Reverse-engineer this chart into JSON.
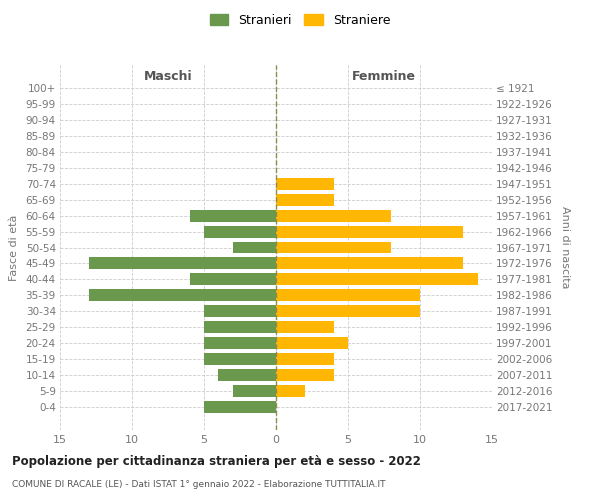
{
  "age_groups": [
    "100+",
    "95-99",
    "90-94",
    "85-89",
    "80-84",
    "75-79",
    "70-74",
    "65-69",
    "60-64",
    "55-59",
    "50-54",
    "45-49",
    "40-44",
    "35-39",
    "30-34",
    "25-29",
    "20-24",
    "15-19",
    "10-14",
    "5-9",
    "0-4"
  ],
  "birth_years": [
    "≤ 1921",
    "1922-1926",
    "1927-1931",
    "1932-1936",
    "1937-1941",
    "1942-1946",
    "1947-1951",
    "1952-1956",
    "1957-1961",
    "1962-1966",
    "1967-1971",
    "1972-1976",
    "1977-1981",
    "1982-1986",
    "1987-1991",
    "1992-1996",
    "1997-2001",
    "2002-2006",
    "2007-2011",
    "2012-2016",
    "2017-2021"
  ],
  "males": [
    0,
    0,
    0,
    0,
    0,
    0,
    0,
    0,
    6,
    5,
    3,
    13,
    6,
    13,
    5,
    5,
    5,
    5,
    4,
    3,
    5
  ],
  "females": [
    0,
    0,
    0,
    0,
    0,
    0,
    4,
    4,
    8,
    13,
    8,
    13,
    14,
    10,
    10,
    4,
    5,
    4,
    4,
    2,
    0
  ],
  "male_color": "#6a994e",
  "female_color": "#ffb703",
  "title": "Popolazione per cittadinanza straniera per età e sesso - 2022",
  "subtitle": "COMUNE DI RACALE (LE) - Dati ISTAT 1° gennaio 2022 - Elaborazione TUTTITALIA.IT",
  "header_left": "Maschi",
  "header_right": "Femmine",
  "ylabel_left": "Fasce di età",
  "ylabel_right": "Anni di nascita",
  "legend_male": "Stranieri",
  "legend_female": "Straniere",
  "xlim": 15,
  "bg_color": "#ffffff",
  "grid_color": "#cccccc",
  "dashed_line_color": "#8b8b4e",
  "tick_color": "#777777",
  "header_color": "#555555",
  "title_color": "#222222",
  "subtitle_color": "#555555"
}
